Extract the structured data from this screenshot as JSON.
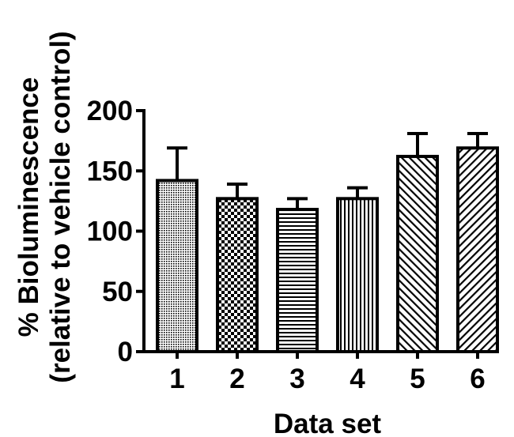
{
  "chart_data": {
    "type": "bar",
    "categories": [
      "1",
      "2",
      "3",
      "4",
      "5",
      "6"
    ],
    "values": [
      142,
      127,
      118,
      127,
      162,
      169
    ],
    "errors": [
      27,
      12,
      9,
      9,
      19,
      12
    ],
    "patterns": [
      "fine-dots",
      "checker",
      "horizontal",
      "vertical",
      "diagonal-up",
      "diagonal-down"
    ],
    "xlabel": "Data set",
    "ylabel_line1": "% Bioluminescence",
    "ylabel_line2": "(relative to vehicle control)",
    "ylim": [
      0,
      200
    ],
    "yticks": [
      0,
      50,
      100,
      150,
      200
    ],
    "ytick_labels": [
      "0",
      "50",
      "100",
      "150",
      "200"
    ],
    "grid": false,
    "bar_fill": "#ffffff",
    "stroke": "#000000"
  }
}
